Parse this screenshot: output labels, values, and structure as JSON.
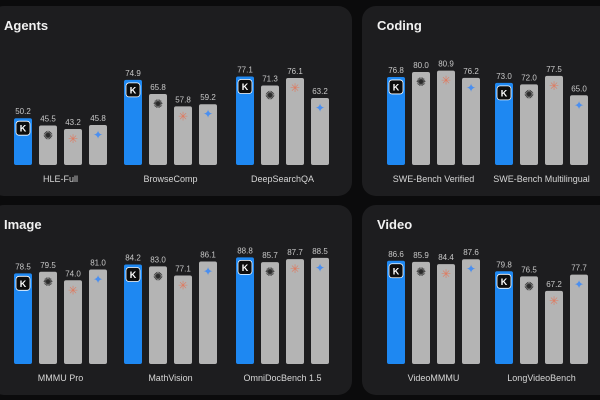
{
  "colors": {
    "kimi": "#1e88f2",
    "others": "#b4b4b4",
    "panel_bg": "#1d1d1f",
    "page_bg": "#0b0b0c",
    "value_label": "#c8c8c8",
    "category_label": "#d6d6d6"
  },
  "models": [
    {
      "icon": "kimi-k-logo-icon",
      "glyph": "K"
    },
    {
      "icon": "openai-logo-icon",
      "glyph": "✺"
    },
    {
      "icon": "claude-logo-icon",
      "glyph": "✳"
    },
    {
      "icon": "gemini-logo-icon",
      "glyph": "✦"
    }
  ],
  "chart_data": [
    {
      "type": "bar",
      "title": "Agents",
      "categories": [
        "HLE-Full",
        "BrowseComp",
        "DeepSearchQA"
      ],
      "series_values": [
        [
          50.2,
          45.5,
          43.2,
          45.8
        ],
        [
          74.9,
          65.8,
          57.8,
          59.2
        ],
        [
          77.1,
          71.3,
          76.1,
          63.2
        ]
      ],
      "ylim": [
        0,
        100
      ],
      "grid": false
    },
    {
      "type": "bar",
      "title": "Coding",
      "categories": [
        "SWE-Bench Verified",
        "SWE-Bench Multilingual"
      ],
      "series_values": [
        [
          76.8,
          80.0,
          80.9,
          76.2
        ],
        [
          73.0,
          72.0,
          77.5,
          65.0
        ]
      ],
      "ylim": [
        0,
        100
      ],
      "grid": false
    },
    {
      "type": "bar",
      "title": "Image",
      "categories": [
        "MMMU Pro",
        "MathVision",
        "OmniDocBench 1.5"
      ],
      "series_values": [
        [
          78.5,
          79.5,
          74.0,
          81.0
        ],
        [
          84.2,
          83.0,
          77.1,
          86.1
        ],
        [
          88.8,
          85.7,
          87.7,
          88.5
        ]
      ],
      "ylim": [
        0,
        100
      ],
      "grid": false
    },
    {
      "type": "bar",
      "title": "Video",
      "categories": [
        "VideoMMMU",
        "LongVideoBench"
      ],
      "series_values": [
        [
          86.6,
          85.9,
          84.4,
          87.6
        ],
        [
          79.8,
          76.5,
          67.2,
          77.7
        ]
      ],
      "ylim": [
        0,
        100
      ],
      "grid": false
    }
  ]
}
